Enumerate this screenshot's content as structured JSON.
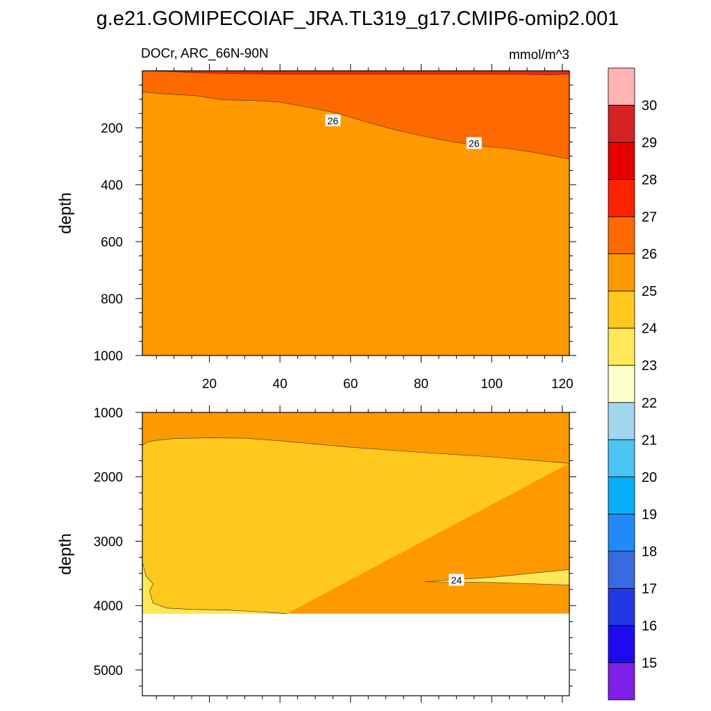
{
  "title": "g.e21.GOMIPECOIAF_JRA.TL319_g17.CMIP6-omip2.001",
  "chart_data": {
    "type": "contour",
    "variable_label": "DOCr, ARC_66N-90N",
    "units": "mmol/m^3",
    "xaxis": {
      "range": [
        1,
        122
      ],
      "ticks": [
        20,
        40,
        60,
        80,
        100,
        120
      ],
      "minor_step": 5,
      "label": ""
    },
    "colorbar": {
      "levels": [
        15,
        16,
        17,
        18,
        19,
        20,
        21,
        22,
        23,
        24,
        25,
        26,
        27,
        28,
        29,
        30
      ],
      "colors": [
        "#7f1fe8",
        "#1e0af0",
        "#2238e6",
        "#3a6ae0",
        "#1f8af8",
        "#06b0f8",
        "#4cc4f4",
        "#a2d6ec",
        "#ffffcc",
        "#ffe858",
        "#ffc81c",
        "#ff9900",
        "#ff6a00",
        "#ff2200",
        "#e60000",
        "#d42222",
        "#ffb3b3"
      ]
    },
    "panels": [
      {
        "ylabel": "depth",
        "ylim": [
          0,
          1000
        ],
        "yticks": [
          200,
          400,
          600,
          800,
          1000
        ],
        "minor_step": 50,
        "regions": [
          {
            "value_range": "26-27",
            "color": "#ff6a00",
            "top": [
              [
                1,
                0
              ],
              [
                122,
                0
              ]
            ],
            "bottom": [
              [
                1,
                74
              ],
              [
                8,
                82
              ],
              [
                16,
                87
              ],
              [
                24,
                102
              ],
              [
                32,
                104
              ],
              [
                40,
                110
              ],
              [
                48,
                128
              ],
              [
                56,
                148
              ],
              [
                64,
                178
              ],
              [
                72,
                205
              ],
              [
                80,
                228
              ],
              [
                88,
                247
              ],
              [
                96,
                263
              ],
              [
                104,
                272
              ],
              [
                112,
                286
              ],
              [
                122,
                310
              ]
            ]
          },
          {
            "value_range": "27-28",
            "color": "#ff2200",
            "top": [
              [
                1,
                0
              ],
              [
                122,
                0
              ]
            ],
            "bottom": [
              [
                1,
                0
              ],
              [
                8,
                2
              ],
              [
                12,
                5
              ],
              [
                20,
                8
              ],
              [
                30,
                10
              ],
              [
                40,
                12
              ],
              [
                60,
                12
              ],
              [
                80,
                12
              ],
              [
                100,
                12
              ],
              [
                112,
                13
              ],
              [
                117,
                14
              ],
              [
                122,
                12
              ]
            ]
          }
        ],
        "background_value_range": "25-26",
        "background_color": "#ff9900",
        "contour_labels": [
          {
            "text": "26",
            "x": 55,
            "y": 175
          },
          {
            "text": "26",
            "x": 95,
            "y": 255
          }
        ]
      },
      {
        "ylabel": "depth",
        "ylim": [
          1000,
          5400
        ],
        "yticks": [
          1000,
          2000,
          3000,
          4000,
          5000
        ],
        "minor_step": 250,
        "seafloor": 4125,
        "regions": [
          {
            "value_range": "24-25",
            "color": "#ffc81c",
            "top": [
              [
                1,
                1520
              ],
              [
                2,
                1470
              ],
              [
                4,
                1440
              ],
              [
                10,
                1405
              ],
              [
                20,
                1395
              ],
              [
                30,
                1400
              ],
              [
                40,
                1440
              ],
              [
                60,
                1540
              ],
              [
                80,
                1620
              ],
              [
                100,
                1690
              ],
              [
                122,
                1790
              ]
            ],
            "bottom": [
              [
                1,
                3320
              ],
              [
                2,
                3540
              ],
              [
                4,
                3660
              ],
              [
                3,
                3780
              ],
              [
                4,
                3960
              ],
              [
                8,
                4040
              ],
              [
                15,
                4060
              ],
              [
                25,
                4070
              ],
              [
                35,
                4100
              ],
              [
                42,
                4125
              ]
            ]
          },
          {
            "value_range": "23-24",
            "color": "#ffe858",
            "top": [
              [
                1,
                4125
              ],
              [
                122,
                4125
              ]
            ],
            "bottom": [
              [
                1,
                4125
              ],
              [
                122,
                4125
              ]
            ]
          },
          {
            "value_range": "23-24",
            "color": "#ffe858",
            "top": [
              [
                81,
                3630
              ],
              [
                100,
                3560
              ],
              [
                122,
                3440
              ]
            ],
            "bottom": [
              [
                81,
                3630
              ],
              [
                100,
                3640
              ],
              [
                122,
                3680
              ]
            ]
          },
          {
            "value_range": "23-24",
            "color": "#ffe858",
            "top": [
              [
                1,
                3320
              ],
              [
                2,
                3540
              ],
              [
                4,
                3660
              ],
              [
                3,
                3780
              ],
              [
                4,
                3960
              ],
              [
                8,
                4040
              ],
              [
                15,
                4060
              ],
              [
                25,
                4070
              ],
              [
                35,
                4100
              ],
              [
                42,
                4125
              ]
            ],
            "bottom": [
              [
                1,
                4125
              ],
              [
                42,
                4125
              ]
            ]
          }
        ],
        "background_value_range": "25-26",
        "background_color": "#ff9900",
        "contour_labels": [
          {
            "text": "24",
            "x": 90,
            "y": 3605
          }
        ]
      }
    ]
  }
}
